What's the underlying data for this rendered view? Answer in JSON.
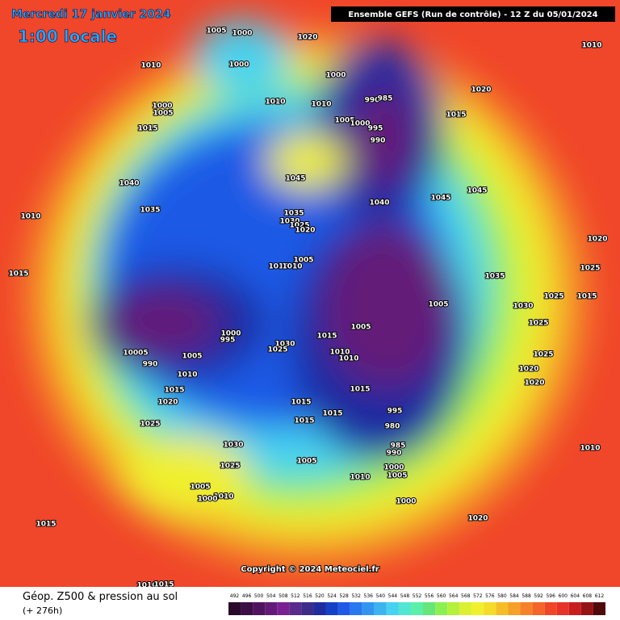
{
  "header": {
    "date": "Mercredi 17 janvier 2024",
    "time": "1:00 locale",
    "run": "Ensemble GEFS  (Run de contrôle)  -  12 Z du 05/01/2024"
  },
  "footer": {
    "title": "Géop. Z500 & pression au sol",
    "lead": "(+ 276h)",
    "copyright": "Copyright © 2024 Meteociel.fr"
  },
  "colorbar": {
    "ticks": [
      492,
      496,
      500,
      504,
      508,
      512,
      516,
      520,
      524,
      528,
      532,
      536,
      540,
      544,
      548,
      552,
      556,
      560,
      564,
      568,
      572,
      576,
      580,
      584,
      588,
      592,
      596,
      600,
      604,
      608,
      612
    ],
    "colors": [
      "#2a0a2a",
      "#3c0f46",
      "#50145f",
      "#641a78",
      "#7a2090",
      "#5a2a8c",
      "#3c2c8a",
      "#1e2ca0",
      "#1440c8",
      "#1e5ae6",
      "#2878f0",
      "#3296f0",
      "#3cb4f0",
      "#46d2f0",
      "#50e6d2",
      "#5af0aa",
      "#64e678",
      "#8cf050",
      "#b4f03c",
      "#dcf032",
      "#f0f02d",
      "#f5dc28",
      "#f5be28",
      "#f5a028",
      "#f58228",
      "#f56428",
      "#f04628",
      "#e63228",
      "#c81e1e",
      "#961414",
      "#500a0a"
    ]
  },
  "isobar_labels": [
    "1005",
    "1000",
    "1020",
    "1010",
    "1010",
    "1000",
    "1000",
    "990",
    "985",
    "1020",
    "1010",
    "1010",
    "1000",
    "1005",
    "1015",
    "1005",
    "1000",
    "995",
    "990",
    "1015",
    "1045",
    "1040",
    "1045",
    "1045",
    "1040",
    "1035",
    "1010",
    "1035",
    "1030",
    "1025",
    "1020",
    "1020",
    "1005",
    "1015",
    "1010",
    "1025",
    "1015",
    "1035",
    "1015",
    "1025",
    "1005",
    "1030",
    "1025",
    "1000",
    "995",
    "1005",
    "1015",
    "1030",
    "1025",
    "1010",
    "10005",
    "1005",
    "1010",
    "1025",
    "990",
    "1020",
    "1010",
    "1020",
    "1015",
    "1015",
    "1020",
    "1015",
    "995",
    "1015",
    "1015",
    "1025",
    "980",
    "1030",
    "985",
    "990",
    "1010",
    "1005",
    "1025",
    "1000",
    "1005",
    "1010",
    "1005",
    "1010",
    "1000",
    "1000",
    "1020",
    "1015",
    "1010",
    "1015"
  ]
}
